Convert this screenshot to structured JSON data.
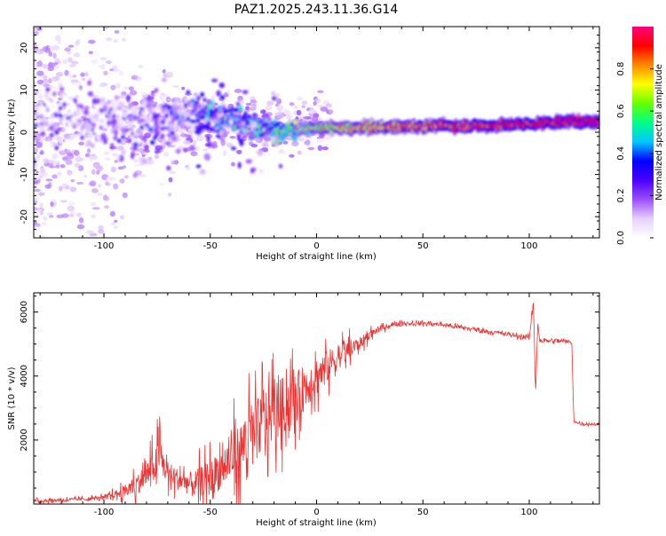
{
  "title": "PAZ1.2025.243.11.36.G14",
  "chart_data": [
    {
      "type": "heatmap",
      "name": "spectrogram",
      "xlabel": "Height of straight line (km)",
      "ylabel": "Frequency (Hz)",
      "xlim": [
        -133,
        133
      ],
      "ylim": [
        -25,
        25
      ],
      "xticks": [
        -100,
        -50,
        0,
        50,
        100
      ],
      "xtick_labels": [
        "-100",
        "-50",
        "0",
        "50",
        "100"
      ],
      "yticks": [
        -20,
        -10,
        0,
        10,
        20
      ],
      "ytick_labels": [
        "-20",
        "-10",
        "0",
        "10",
        "20"
      ],
      "colorbar": {
        "label": "Normalized spectral amplitude",
        "range": [
          0,
          1
        ],
        "ticks": [
          0,
          0.2,
          0.4,
          0.6,
          0.8
        ],
        "tick_labels": [
          "0.0",
          "0.2",
          "0.4",
          "0.6",
          "0.8"
        ],
        "colors": [
          "#ffffff",
          "#e6d0ff",
          "#9c4dff",
          "#4b00ff",
          "#0000ff",
          "#00c8ff",
          "#00ff88",
          "#66ff00",
          "#ffff00",
          "#ff8800",
          "#ff0000",
          "#ff0080"
        ]
      },
      "ridge": {
        "height_km": [
          -133,
          -110,
          -90,
          -70,
          -60,
          -50,
          -40,
          -30,
          -20,
          -10,
          0,
          20,
          50,
          80,
          100,
          120,
          133
        ],
        "frequency_hz": [
          3,
          3,
          2.5,
          3,
          5,
          4,
          3,
          1.5,
          0,
          0.5,
          1,
          1,
          1.5,
          1.5,
          2,
          2.5,
          2.5
        ],
        "amplitude": [
          0.05,
          0.1,
          0.15,
          0.18,
          0.25,
          0.3,
          0.35,
          0.4,
          0.45,
          0.55,
          0.65,
          0.75,
          0.85,
          0.9,
          0.92,
          0.95,
          1.0
        ]
      }
    },
    {
      "type": "line",
      "name": "snr",
      "xlabel": "Height of straight line (km)",
      "ylabel": "SNR (10 * v/v)",
      "xlim": [
        -133,
        133
      ],
      "ylim": [
        0,
        6600
      ],
      "xticks": [
        -100,
        -50,
        0,
        50,
        100
      ],
      "xtick_labels": [
        "-100",
        "-50",
        "0",
        "50",
        "100"
      ],
      "yticks": [
        2000,
        4000,
        6000
      ],
      "ytick_labels": [
        "2000",
        "4000",
        "6000"
      ],
      "color": "#ee3333",
      "x": [
        -133,
        -110,
        -100,
        -95,
        -90,
        -85,
        -80,
        -76,
        -74,
        -72,
        -70,
        -66,
        -62,
        -58,
        -55,
        -50,
        -45,
        -40,
        -35,
        -30,
        -25,
        -20,
        -15,
        -10,
        -5,
        0,
        5,
        10,
        15,
        20,
        25,
        30,
        35,
        40,
        50,
        60,
        70,
        80,
        90,
        100,
        102,
        103,
        104,
        105,
        110,
        115,
        120,
        121,
        122,
        125,
        133
      ],
      "y": [
        100,
        150,
        200,
        300,
        400,
        600,
        900,
        1200,
        1600,
        1200,
        1000,
        800,
        700,
        600,
        700,
        800,
        1100,
        1400,
        1800,
        2200,
        2600,
        2900,
        3100,
        3300,
        3700,
        4000,
        4300,
        4600,
        4800,
        5000,
        5300,
        5500,
        5600,
        5650,
        5650,
        5600,
        5500,
        5400,
        5300,
        5200,
        6300,
        3500,
        5700,
        5100,
        5100,
        5100,
        5050,
        2600,
        2550,
        2500,
        2500
      ],
      "noise_amplitude": [
        80,
        100,
        120,
        200,
        400,
        600,
        800,
        1000,
        1200,
        900,
        700,
        700,
        700,
        800,
        900,
        1100,
        1300,
        1500,
        1700,
        1800,
        1900,
        1900,
        1800,
        1600,
        1400,
        1200,
        1000,
        800,
        600,
        400,
        250,
        150,
        120,
        100,
        100,
        100,
        100,
        100,
        100,
        100,
        300,
        300,
        200,
        100,
        100,
        100,
        80,
        60,
        60,
        60,
        60
      ]
    }
  ]
}
